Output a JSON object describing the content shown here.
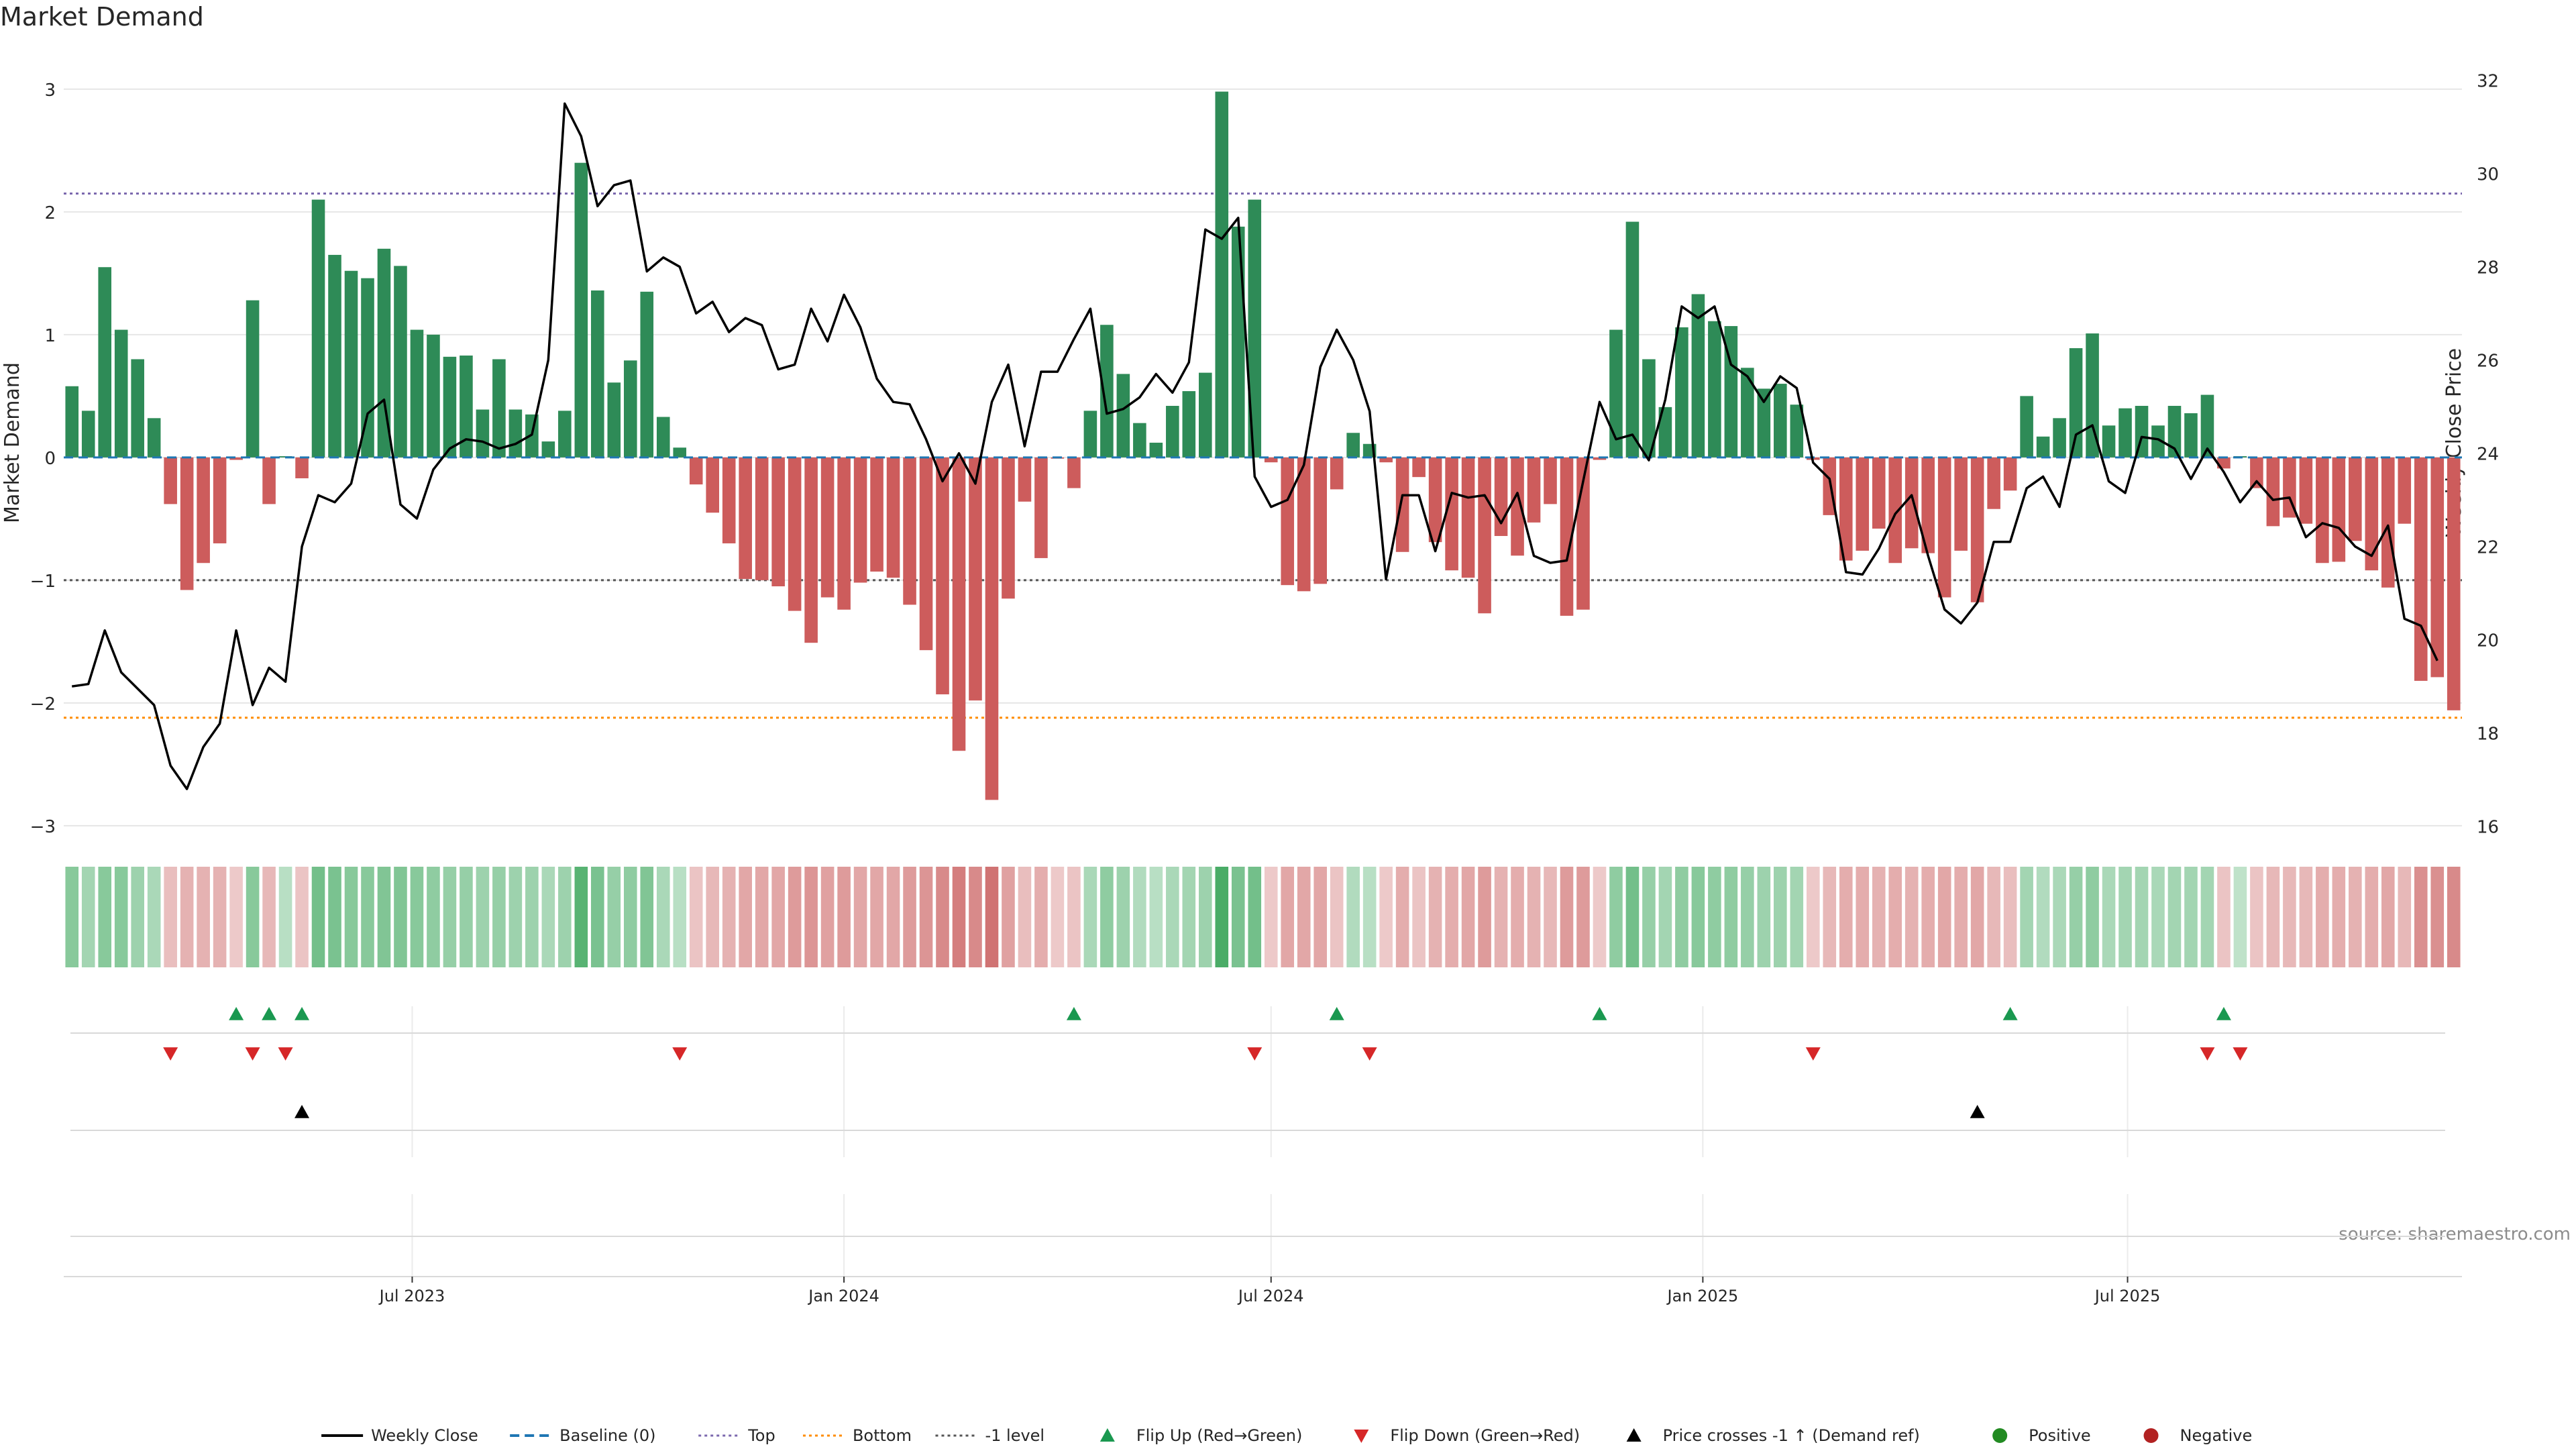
{
  "chart_data": {
    "type": "bar",
    "title": "Market Demand",
    "ylabel": "Market Demand",
    "y2label": "Weekly Close Price",
    "source": "source: sharemaestro.com",
    "ylim": [
      -3.05,
      3.3
    ],
    "y2lim": [
      15.88,
      32.6
    ],
    "yticks": [
      -3,
      -2,
      -1,
      0,
      1,
      2,
      3
    ],
    "yticklabels": [
      "−3",
      "−2",
      "−1",
      "0",
      "1",
      "2",
      "3"
    ],
    "y2ticks": [
      16,
      18,
      20,
      22,
      24,
      26,
      28,
      30,
      32
    ],
    "y2ticklabels": [
      "16",
      "18",
      "20",
      "22",
      "24",
      "26",
      "28",
      "30",
      "32"
    ],
    "x_start": "2023-02-06",
    "x_step_days": 7,
    "xticks": [
      {
        "date": "2023-07-01",
        "label": "Jul 2023"
      },
      {
        "date": "2024-01-01",
        "label": "Jan 2024"
      },
      {
        "date": "2024-07-01",
        "label": "Jul 2024"
      },
      {
        "date": "2025-01-01",
        "label": "Jan 2025"
      },
      {
        "date": "2025-07-01",
        "label": "Jul 2025"
      }
    ],
    "reference_lines": {
      "top": 2.15,
      "bottom": -2.12,
      "minus_one": -1.0
    },
    "demand": [
      0.58,
      0.38,
      1.55,
      1.04,
      0.8,
      0.32,
      -0.38,
      -1.08,
      -0.86,
      -0.7,
      -0.02,
      1.28,
      -0.38,
      0.01,
      -0.17,
      2.1,
      1.65,
      1.52,
      1.46,
      1.7,
      1.56,
      1.04,
      1.0,
      0.82,
      0.83,
      0.39,
      0.8,
      0.39,
      0.35,
      0.13,
      0.38,
      2.4,
      1.36,
      0.61,
      0.79,
      1.35,
      0.33,
      0.08,
      -0.22,
      -0.45,
      -0.7,
      -0.99,
      -1.0,
      -1.05,
      -1.25,
      -1.51,
      -1.14,
      -1.24,
      -1.02,
      -0.93,
      -0.98,
      -1.2,
      -1.57,
      -1.93,
      -2.39,
      -1.98,
      -2.79,
      -1.15,
      -0.36,
      -0.82,
      -0.01,
      -0.25,
      0.38,
      1.08,
      0.68,
      0.28,
      0.12,
      0.42,
      0.54,
      0.69,
      2.98,
      1.88,
      2.1,
      -0.04,
      -1.04,
      -1.09,
      -1.03,
      -0.26,
      0.2,
      0.11,
      -0.04,
      -0.77,
      -0.16,
      -0.69,
      -0.92,
      -0.98,
      -1.27,
      -0.64,
      -0.8,
      -0.53,
      -0.38,
      -1.29,
      -1.24,
      -0.02,
      1.04,
      1.92,
      0.8,
      0.41,
      1.06,
      1.33,
      1.11,
      1.07,
      0.73,
      0.56,
      0.6,
      0.43,
      -0.02,
      -0.47,
      -0.84,
      -0.76,
      -0.58,
      -0.86,
      -0.74,
      -0.78,
      -1.14,
      -0.76,
      -1.18,
      -0.42,
      -0.27,
      0.5,
      0.17,
      0.32,
      0.89,
      1.01,
      0.26,
      0.4,
      0.42,
      0.26,
      0.42,
      0.36,
      0.51,
      -0.09,
      0.01,
      -0.25,
      -0.56,
      -0.49,
      -0.54,
      -0.86,
      -0.85,
      -0.68,
      -0.92,
      -1.06,
      -0.54,
      -1.82,
      -1.79,
      -2.06
    ],
    "price": [
      19.0,
      19.05,
      20.2,
      19.3,
      18.95,
      18.6,
      17.3,
      16.8,
      17.7,
      18.2,
      20.2,
      18.6,
      19.4,
      19.1,
      22.0,
      23.1,
      22.95,
      23.35,
      24.85,
      25.15,
      22.9,
      22.6,
      23.65,
      24.1,
      24.3,
      24.25,
      24.1,
      24.2,
      24.4,
      26.0,
      31.5,
      30.8,
      29.3,
      29.75,
      29.85,
      27.9,
      28.2,
      28.0,
      27.0,
      27.25,
      26.6,
      26.9,
      26.75,
      25.8,
      25.9,
      27.1,
      26.4,
      27.4,
      26.7,
      25.6,
      25.1,
      25.05,
      24.3,
      23.4,
      24.0,
      23.35,
      25.1,
      25.9,
      24.15,
      25.75,
      25.75,
      26.45,
      27.1,
      24.85,
      24.95,
      25.2,
      25.7,
      25.3,
      25.95,
      28.8,
      28.6,
      29.05,
      23.5,
      22.85,
      23.0,
      23.75,
      25.85,
      26.65,
      26.0,
      24.9,
      21.3,
      23.1,
      23.1,
      21.9,
      23.15,
      23.05,
      23.1,
      22.5,
      23.15,
      21.8,
      21.65,
      21.7,
      23.4,
      25.1,
      24.3,
      24.4,
      23.85,
      25.15,
      27.15,
      26.9,
      27.15,
      25.9,
      25.65,
      25.1,
      25.65,
      25.4,
      23.8,
      23.45,
      21.45,
      21.4,
      21.95,
      22.7,
      23.1,
      21.8,
      20.65,
      20.35,
      20.8,
      22.1,
      22.1,
      23.25,
      23.5,
      22.85,
      24.4,
      24.6,
      23.4,
      23.15,
      24.35,
      24.3,
      24.1,
      23.45,
      24.1,
      23.6,
      22.95,
      23.4,
      23.0,
      23.05,
      22.2,
      22.5,
      22.4,
      22.0,
      21.8,
      22.45,
      20.45,
      20.3,
      19.55
    ],
    "heat_intensity": [
      0.55,
      0.35,
      0.55,
      0.55,
      0.4,
      0.3,
      0.25,
      0.35,
      0.35,
      0.35,
      0.15,
      0.55,
      0.3,
      0.2,
      0.2,
      0.7,
      0.65,
      0.55,
      0.55,
      0.6,
      0.6,
      0.55,
      0.5,
      0.45,
      0.45,
      0.4,
      0.45,
      0.4,
      0.4,
      0.3,
      0.4,
      0.9,
      0.65,
      0.45,
      0.5,
      0.6,
      0.3,
      0.2,
      0.2,
      0.3,
      0.35,
      0.45,
      0.45,
      0.45,
      0.55,
      0.6,
      0.5,
      0.55,
      0.45,
      0.45,
      0.45,
      0.55,
      0.6,
      0.7,
      0.8,
      0.7,
      0.9,
      0.5,
      0.25,
      0.4,
      0.15,
      0.2,
      0.3,
      0.5,
      0.4,
      0.25,
      0.2,
      0.3,
      0.35,
      0.4,
      1.0,
      0.65,
      0.7,
      0.15,
      0.45,
      0.45,
      0.45,
      0.2,
      0.25,
      0.2,
      0.15,
      0.4,
      0.2,
      0.35,
      0.4,
      0.45,
      0.55,
      0.35,
      0.4,
      0.35,
      0.3,
      0.55,
      0.55,
      0.15,
      0.5,
      0.7,
      0.45,
      0.35,
      0.5,
      0.55,
      0.5,
      0.5,
      0.45,
      0.4,
      0.4,
      0.35,
      0.15,
      0.3,
      0.4,
      0.4,
      0.35,
      0.4,
      0.35,
      0.4,
      0.45,
      0.4,
      0.45,
      0.3,
      0.25,
      0.35,
      0.25,
      0.3,
      0.45,
      0.5,
      0.3,
      0.35,
      0.35,
      0.3,
      0.35,
      0.35,
      0.35,
      0.2,
      0.15,
      0.2,
      0.3,
      0.3,
      0.3,
      0.4,
      0.4,
      0.35,
      0.4,
      0.45,
      0.3,
      0.65,
      0.65,
      0.7
    ],
    "flip_up_indices": [
      10,
      12,
      14,
      61,
      77,
      93,
      118,
      131
    ],
    "flip_down_indices": [
      6,
      11,
      13,
      37,
      72,
      79,
      106,
      130,
      132
    ],
    "price_cross_indices": [
      14,
      116
    ],
    "colors": {
      "positive": "#2e8b57",
      "negative": "#cd5c5c",
      "price": "#000000",
      "baseline": "#1f77b4",
      "top": "#7b68ae",
      "bottom": "#ff8c00",
      "minus_one": "#555555",
      "flip_up": "#1a9850",
      "flip_down": "#d62728",
      "cross": "#000000",
      "grid": "#e6e6e6"
    },
    "legend": {
      "placement": "bottom-center",
      "entries": [
        {
          "label": "Weekly Close",
          "kind": "line",
          "color": "#000000"
        },
        {
          "label": "Baseline (0)",
          "kind": "dash",
          "color": "#1f77b4"
        },
        {
          "label": "Top",
          "kind": "dot",
          "color": "#7b68ae"
        },
        {
          "label": "Bottom",
          "kind": "dot",
          "color": "#ff8c00"
        },
        {
          "label": "-1 level",
          "kind": "dot",
          "color": "#555555"
        },
        {
          "label": "Flip Up (Red→Green)",
          "kind": "tri-up",
          "color": "#1a9850"
        },
        {
          "label": "Flip Down (Green→Red)",
          "kind": "tri-down",
          "color": "#d62728"
        },
        {
          "label": "Price crosses -1 ↑ (Demand ref)",
          "kind": "tri-up",
          "color": "#000000"
        },
        {
          "label": "Positive",
          "kind": "circle",
          "color": "#228b22"
        },
        {
          "label": "Negative",
          "kind": "circle",
          "color": "#b22222"
        }
      ]
    }
  }
}
